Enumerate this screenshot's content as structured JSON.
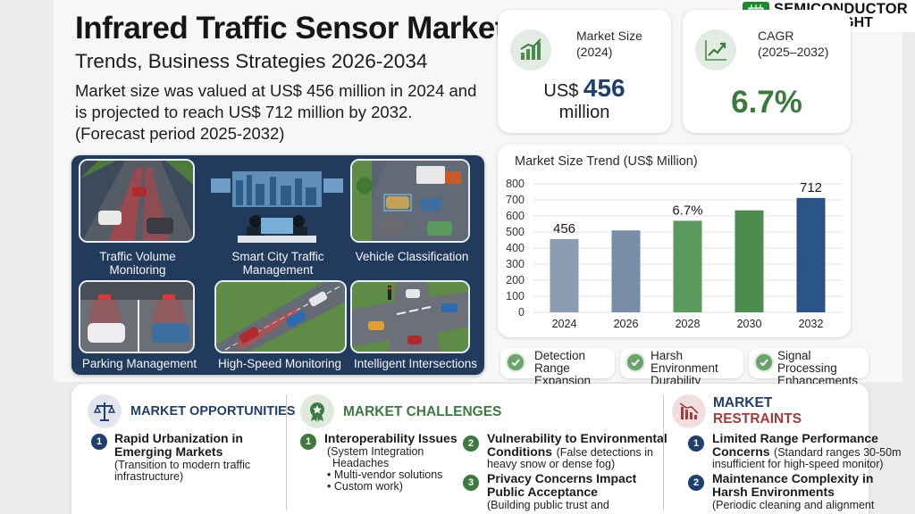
{
  "header": {
    "title": "Infrared Traffic Sensor Market",
    "subtitle": "Trends, Business Strategies 2026-2034",
    "summary_line1": "Market size was valued at US$ 456 million in 2024 and",
    "summary_line2": "is projected to reach US$ 712 million by 2032.",
    "summary_line3": "(Forecast period 2025-2032)"
  },
  "brand": {
    "line1": "SEMICONDUCTOR",
    "line2": "INSIGHT",
    "icon": "chip-icon"
  },
  "kpis": {
    "market_size": {
      "label": "Market Size",
      "period": "(2024)",
      "prefix": "US$",
      "value": "456",
      "unit": "million",
      "icon": "bar-chart-growth-icon"
    },
    "cagr": {
      "label": "CAGR",
      "period": "(2025–2032)",
      "value": "6.7%",
      "icon": "line-chart-growth-icon"
    }
  },
  "applications": [
    {
      "label": "Traffic Volume Monitoring"
    },
    {
      "label": "Smart City Traffic Management"
    },
    {
      "label": "Vehicle Classification"
    },
    {
      "label": "Parking Management"
    },
    {
      "label": "High-Speed Monitoring"
    },
    {
      "label": "Intelligent Intersections"
    }
  ],
  "chart_data": {
    "type": "bar",
    "title": "Market Size Trend (US$ Million)",
    "categories": [
      "2024",
      "2026",
      "2028",
      "2030",
      "2032"
    ],
    "values": [
      456,
      510,
      570,
      635,
      712
    ],
    "ylim": [
      0,
      800
    ],
    "yticks": [
      "0",
      "100",
      "200",
      "300",
      "400",
      "500",
      "600",
      "700",
      "800"
    ],
    "data_labels": {
      "0": "456",
      "2": "6.7%",
      "4": "712"
    },
    "bar_colors": [
      "#8c9db3",
      "#7a8da6",
      "#5a9a5c",
      "#4c8c4f",
      "#2b5486"
    ],
    "grid": true
  },
  "trends": [
    {
      "line1": "Detection Range",
      "line2": "Expansion"
    },
    {
      "line1": "Harsh Environment",
      "line2": "Durability"
    },
    {
      "line1": "Signal Processing",
      "line2": "Enhancements"
    }
  ],
  "opportunities": {
    "title": "MARKET OPPORTUNITIES",
    "icon": "scales-icon",
    "color": "#1f3f6e",
    "items": [
      {
        "num": "1",
        "head1": "Rapid Urbanization in",
        "head2": "Emerging Markets",
        "body1": "(Transition to modern traffic",
        "body2": "infrastructure)"
      }
    ]
  },
  "challenges": {
    "title": "MARKET CHALLENGES",
    "icon": "star-badge-icon",
    "color": "#3d7a3f",
    "items": [
      {
        "num": "1",
        "head1": "Interoperability Issues",
        "body1": "(System Integration",
        "body2": "Headaches",
        "body3": "• Multi-vendor solutions",
        "body4": "• Custom work)"
      },
      {
        "num": "2",
        "head1": "Vulnerability to Environmental",
        "head2": "Conditions",
        "body_inline": "(False detections in",
        "body2": "heavy snow or dense fog)"
      },
      {
        "num": "3",
        "head1": "Privacy Concerns Impact",
        "head2": "Public Acceptance",
        "body1": "(Building public trust and"
      }
    ]
  },
  "restraints": {
    "title1": "MARKET",
    "title2": "RESTRAINTS",
    "icon": "declining-chart-icon",
    "color1": "#1f3f6e",
    "color2": "#a63a3a",
    "items": [
      {
        "num": "1",
        "head1": "Limited Range Performance",
        "head2": "Concerns",
        "body_inline": "(Standard ranges 30-50m",
        "body2": "insufficient for high-speed monitor)"
      },
      {
        "num": "2",
        "head1": "Maintenance Complexity in",
        "head2": "Harsh Environments",
        "body1": "(Periodic cleaning and alignment"
      }
    ]
  }
}
